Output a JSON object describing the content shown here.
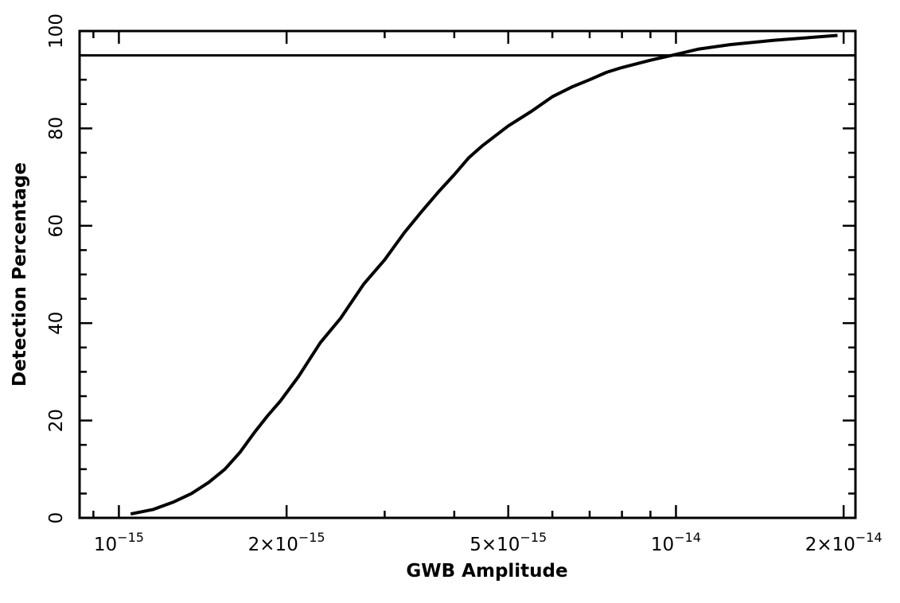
{
  "chart_data": {
    "type": "line",
    "title": "",
    "xlabel": "GWB Amplitude",
    "ylabel": "Detection Percentage",
    "xscale": "log",
    "xlim": [
      8.5e-16,
      2.1e-14
    ],
    "ylim": [
      0,
      100
    ],
    "grid": false,
    "legend": "none",
    "x_ticks": [
      {
        "value": 1e-15,
        "mantissa": "10",
        "exponent": "−15"
      },
      {
        "value": 2e-15,
        "mantissa": "2×10",
        "exponent": "−15"
      },
      {
        "value": 5e-15,
        "mantissa": "5×10",
        "exponent": "−15"
      },
      {
        "value": 1e-14,
        "mantissa": "10",
        "exponent": "−14"
      },
      {
        "value": 2e-14,
        "mantissa": "2×10",
        "exponent": "−14"
      }
    ],
    "x_minor_ticks": [
      9e-16,
      3e-15,
      4e-15,
      6e-15,
      7e-15,
      8e-15,
      9e-15
    ],
    "y_ticks": [
      "0",
      "20",
      "40",
      "60",
      "80",
      "100"
    ],
    "y_tick_values": [
      0,
      20,
      40,
      60,
      80,
      100
    ],
    "y_minor_step": 5,
    "reference_lines": [
      {
        "axis": "y",
        "value": 95
      }
    ],
    "series": [
      {
        "x": [
          1.05e-15,
          1.15e-15,
          1.25e-15,
          1.35e-15,
          1.45e-15,
          1.55e-15,
          1.65e-15,
          1.75e-15,
          1.85e-15,
          1.95e-15,
          2.1e-15,
          2.3e-15,
          2.5e-15,
          2.75e-15,
          3e-15,
          3.25e-15,
          3.5e-15,
          3.75e-15,
          4e-15,
          4.25e-15,
          4.5e-15,
          5e-15,
          5.5e-15,
          6e-15,
          6.5e-15,
          7e-15,
          7.5e-15,
          8e-15,
          9e-15,
          1e-14,
          1.1e-14,
          1.25e-14,
          1.5e-14,
          1.75e-14,
          1.95e-14
        ],
        "y": [
          0.8,
          1.7,
          3.2,
          5.0,
          7.3,
          10.0,
          13.5,
          17.5,
          21.0,
          24.0,
          29.0,
          36.0,
          41.0,
          48.0,
          53.0,
          58.5,
          63.0,
          67.0,
          70.5,
          74.0,
          76.5,
          80.5,
          83.5,
          86.5,
          88.5,
          90.0,
          91.5,
          92.5,
          94.0,
          95.2,
          96.3,
          97.2,
          98.1,
          98.7,
          99.1
        ]
      }
    ]
  }
}
